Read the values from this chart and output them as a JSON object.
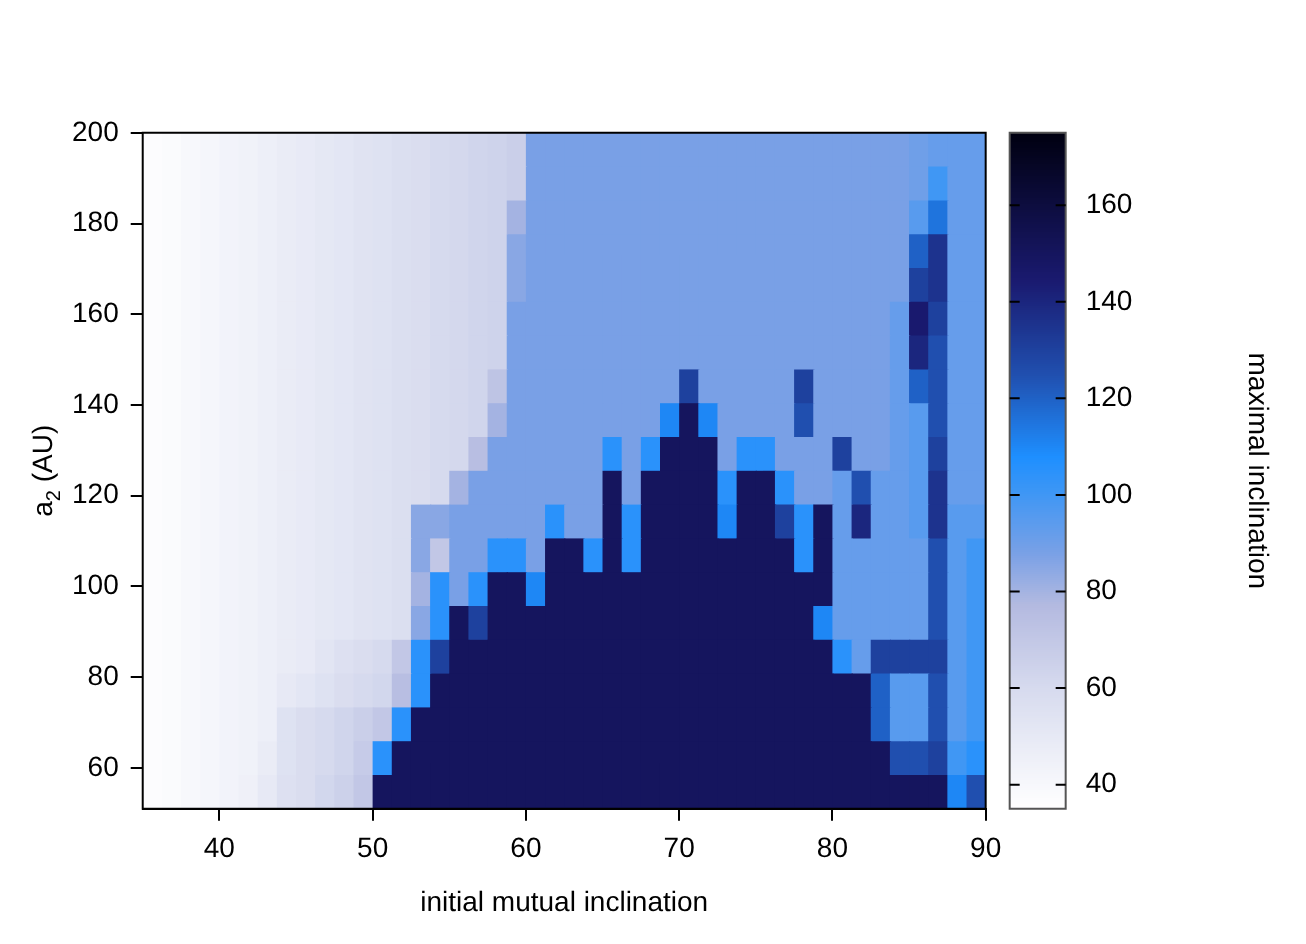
{
  "chart_data": {
    "type": "heatmap",
    "xlabel": "initial mutual inclination",
    "ylabel": "a$_{2}$ (AU)",
    "clabel": "maximal inclination",
    "xlim": [
      35,
      90
    ],
    "xticks": [
      40,
      50,
      60,
      70,
      80,
      90
    ],
    "ylim": [
      51,
      200
    ],
    "yticks": [
      60,
      80,
      100,
      120,
      140,
      160,
      180,
      200
    ],
    "clim": [
      35,
      175
    ],
    "cticks": [
      40,
      60,
      80,
      100,
      120,
      140,
      160
    ],
    "grid": false,
    "cells": [
      [
        37,
        38,
        40,
        41,
        43,
        44,
        46,
        48,
        49,
        51,
        52,
        54,
        55,
        57,
        58,
        60,
        61,
        63,
        64,
        66,
        88,
        88,
        88,
        88,
        88,
        88,
        88,
        88,
        88,
        88,
        88,
        88,
        88,
        88,
        88,
        88,
        88,
        88,
        88,
        88,
        90,
        92,
        92,
        92
      ],
      [
        37,
        38,
        40,
        41,
        43,
        44,
        46,
        48,
        49,
        51,
        52,
        54,
        55,
        57,
        58,
        60,
        61,
        63,
        64,
        66,
        88,
        88,
        88,
        88,
        88,
        88,
        88,
        88,
        88,
        88,
        88,
        88,
        88,
        88,
        88,
        88,
        88,
        88,
        88,
        88,
        90,
        100,
        92,
        92
      ],
      [
        37,
        38,
        40,
        41,
        43,
        44,
        46,
        48,
        49,
        51,
        52,
        54,
        55,
        57,
        58,
        60,
        61,
        63,
        64,
        80,
        88,
        88,
        88,
        88,
        88,
        88,
        88,
        88,
        88,
        88,
        88,
        88,
        88,
        88,
        88,
        88,
        88,
        88,
        88,
        88,
        95,
        115,
        92,
        92
      ],
      [
        37,
        38,
        40,
        41,
        43,
        44,
        46,
        48,
        49,
        51,
        52,
        54,
        55,
        57,
        58,
        60,
        61,
        63,
        64,
        85,
        88,
        88,
        88,
        88,
        88,
        88,
        88,
        88,
        88,
        88,
        88,
        88,
        88,
        88,
        88,
        88,
        88,
        88,
        88,
        88,
        120,
        135,
        92,
        92
      ],
      [
        37,
        38,
        40,
        41,
        43,
        44,
        46,
        48,
        49,
        51,
        52,
        54,
        55,
        57,
        58,
        60,
        61,
        63,
        64,
        85,
        88,
        88,
        88,
        88,
        88,
        88,
        88,
        88,
        88,
        88,
        88,
        88,
        88,
        88,
        88,
        88,
        88,
        88,
        88,
        88,
        130,
        135,
        92,
        92
      ],
      [
        37,
        38,
        40,
        41,
        43,
        44,
        46,
        48,
        49,
        51,
        52,
        54,
        55,
        57,
        58,
        60,
        61,
        63,
        64,
        88,
        88,
        88,
        88,
        88,
        88,
        88,
        88,
        88,
        88,
        88,
        88,
        88,
        88,
        88,
        88,
        88,
        88,
        88,
        88,
        92,
        145,
        130,
        92,
        92
      ],
      [
        37,
        38,
        40,
        41,
        43,
        44,
        46,
        48,
        49,
        51,
        52,
        54,
        55,
        57,
        58,
        60,
        61,
        63,
        64,
        88,
        88,
        88,
        88,
        88,
        88,
        88,
        88,
        88,
        88,
        88,
        88,
        88,
        88,
        88,
        88,
        88,
        88,
        88,
        88,
        92,
        140,
        125,
        92,
        92
      ],
      [
        37,
        38,
        40,
        41,
        43,
        44,
        46,
        48,
        49,
        51,
        52,
        54,
        55,
        57,
        58,
        60,
        61,
        63,
        72,
        88,
        88,
        88,
        88,
        88,
        88,
        88,
        88,
        88,
        130,
        88,
        88,
        88,
        88,
        88,
        130,
        88,
        88,
        88,
        88,
        92,
        120,
        125,
        92,
        92
      ],
      [
        37,
        38,
        40,
        41,
        43,
        44,
        46,
        48,
        49,
        51,
        52,
        54,
        55,
        57,
        58,
        60,
        61,
        63,
        80,
        88,
        88,
        88,
        88,
        88,
        88,
        88,
        88,
        110,
        150,
        110,
        88,
        88,
        88,
        88,
        125,
        88,
        88,
        88,
        88,
        92,
        95,
        125,
        92,
        92
      ],
      [
        37,
        38,
        40,
        41,
        43,
        44,
        46,
        48,
        49,
        51,
        52,
        54,
        55,
        57,
        58,
        60,
        61,
        75,
        88,
        88,
        88,
        88,
        88,
        88,
        105,
        88,
        105,
        150,
        150,
        150,
        88,
        105,
        105,
        88,
        88,
        88,
        130,
        88,
        88,
        92,
        95,
        130,
        92,
        92
      ],
      [
        37,
        38,
        40,
        41,
        43,
        44,
        46,
        48,
        49,
        51,
        52,
        54,
        55,
        57,
        58,
        60,
        80,
        88,
        88,
        88,
        88,
        88,
        88,
        88,
        150,
        88,
        150,
        150,
        150,
        150,
        105,
        150,
        150,
        105,
        88,
        88,
        92,
        125,
        92,
        92,
        95,
        135,
        92,
        92
      ],
      [
        37,
        38,
        40,
        41,
        43,
        44,
        46,
        48,
        49,
        51,
        52,
        54,
        55,
        57,
        85,
        85,
        88,
        88,
        88,
        88,
        88,
        105,
        88,
        88,
        150,
        105,
        150,
        150,
        150,
        150,
        110,
        150,
        150,
        130,
        105,
        150,
        92,
        140,
        92,
        92,
        95,
        135,
        95,
        95
      ],
      [
        37,
        38,
        40,
        41,
        43,
        44,
        46,
        48,
        49,
        51,
        52,
        54,
        55,
        57,
        85,
        70,
        88,
        88,
        105,
        105,
        88,
        150,
        150,
        105,
        150,
        105,
        150,
        150,
        150,
        150,
        150,
        150,
        150,
        150,
        105,
        150,
        92,
        92,
        92,
        92,
        92,
        125,
        95,
        100
      ],
      [
        37,
        38,
        40,
        41,
        43,
        44,
        46,
        48,
        49,
        51,
        52,
        54,
        55,
        57,
        80,
        105,
        88,
        105,
        150,
        150,
        110,
        150,
        150,
        150,
        150,
        150,
        150,
        150,
        150,
        150,
        150,
        150,
        150,
        150,
        150,
        150,
        92,
        92,
        92,
        92,
        92,
        125,
        95,
        100
      ],
      [
        37,
        38,
        40,
        41,
        43,
        44,
        46,
        48,
        49,
        51,
        52,
        54,
        55,
        57,
        85,
        105,
        150,
        130,
        150,
        150,
        150,
        150,
        150,
        150,
        150,
        150,
        150,
        150,
        150,
        150,
        150,
        150,
        150,
        150,
        150,
        110,
        92,
        92,
        92,
        92,
        92,
        125,
        95,
        100
      ],
      [
        37,
        38,
        40,
        41,
        43,
        44,
        46,
        48,
        49,
        53,
        56,
        58,
        60,
        70,
        105,
        130,
        150,
        150,
        150,
        150,
        150,
        150,
        150,
        150,
        150,
        150,
        150,
        150,
        150,
        150,
        150,
        150,
        150,
        150,
        150,
        150,
        105,
        92,
        130,
        130,
        130,
        130,
        95,
        100
      ],
      [
        37,
        38,
        40,
        41,
        43,
        44,
        46,
        50,
        52,
        55,
        58,
        60,
        62,
        75,
        105,
        150,
        150,
        150,
        150,
        150,
        150,
        150,
        150,
        150,
        150,
        150,
        150,
        150,
        150,
        150,
        150,
        150,
        150,
        150,
        150,
        150,
        150,
        150,
        120,
        95,
        95,
        125,
        95,
        100
      ],
      [
        37,
        38,
        40,
        41,
        43,
        44,
        46,
        55,
        58,
        60,
        63,
        66,
        70,
        105,
        150,
        150,
        150,
        150,
        150,
        150,
        150,
        150,
        150,
        150,
        150,
        150,
        150,
        150,
        150,
        150,
        150,
        150,
        150,
        150,
        150,
        150,
        150,
        150,
        120,
        95,
        95,
        125,
        95,
        100
      ],
      [
        37,
        38,
        40,
        41,
        43,
        44,
        48,
        55,
        58,
        60,
        63,
        68,
        105,
        150,
        150,
        150,
        150,
        150,
        150,
        150,
        150,
        150,
        150,
        150,
        150,
        150,
        150,
        150,
        150,
        150,
        150,
        150,
        150,
        150,
        150,
        150,
        150,
        150,
        150,
        125,
        125,
        130,
        100,
        105
      ],
      [
        37,
        38,
        40,
        41,
        43,
        45,
        50,
        56,
        58,
        62,
        65,
        70,
        150,
        150,
        150,
        150,
        150,
        150,
        150,
        150,
        150,
        150,
        150,
        150,
        150,
        150,
        150,
        150,
        150,
        150,
        150,
        150,
        150,
        150,
        150,
        150,
        150,
        150,
        150,
        150,
        150,
        150,
        110,
        125
      ]
    ]
  }
}
